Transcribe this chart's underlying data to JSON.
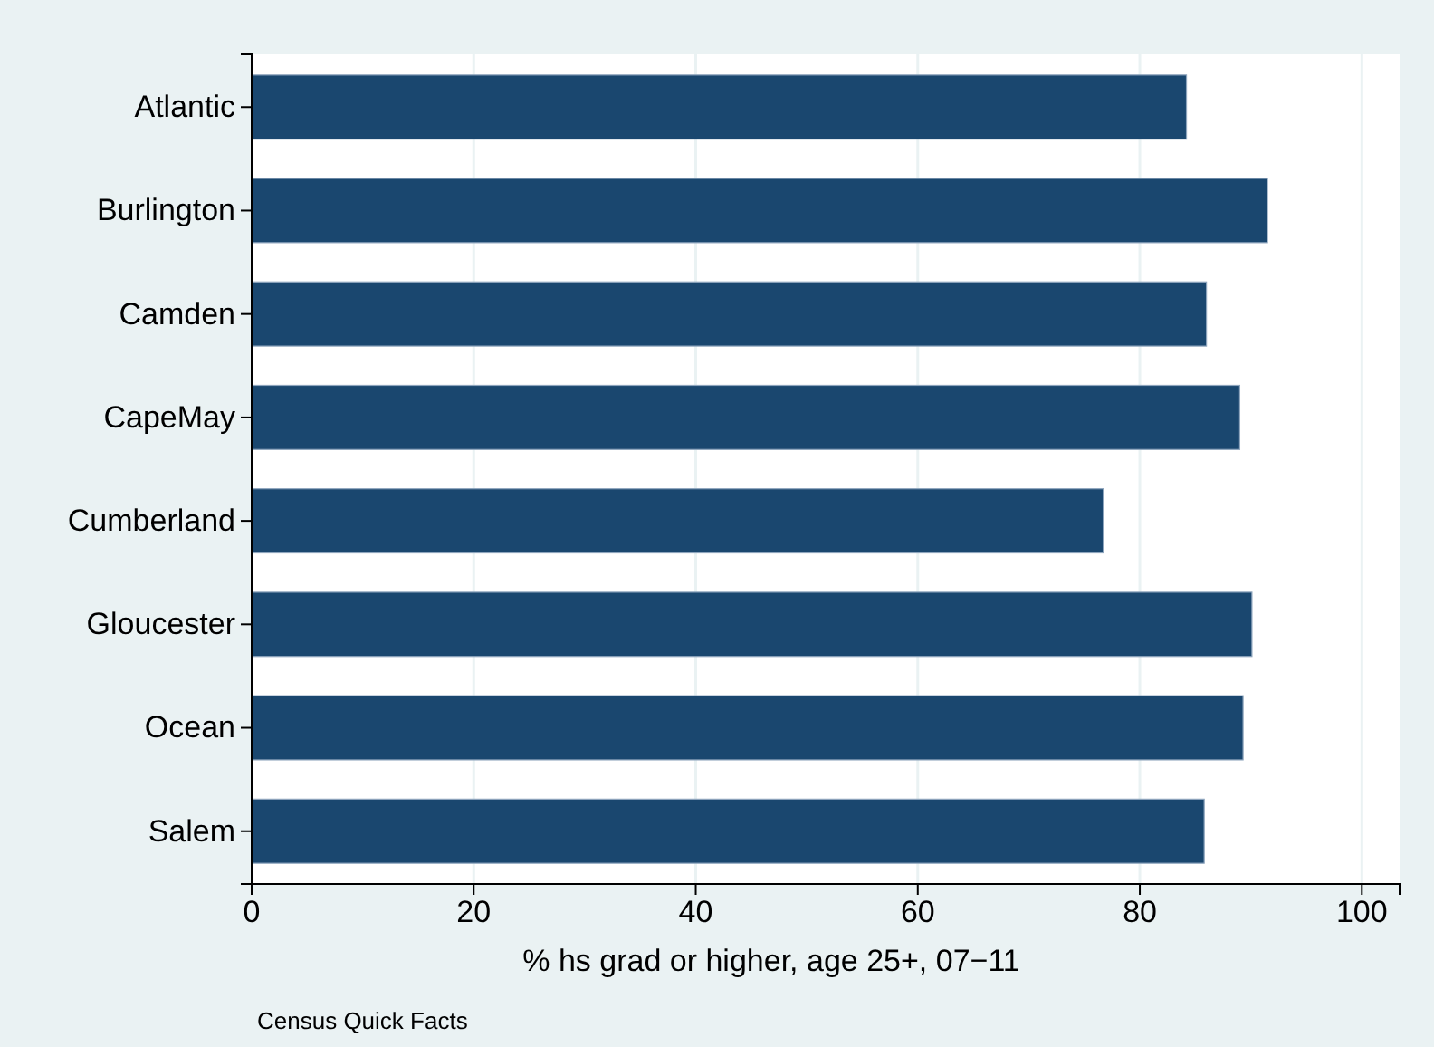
{
  "chart_data": {
    "type": "bar",
    "orientation": "horizontal",
    "categories": [
      "Atlantic",
      "Burlington",
      "Camden",
      "CapeMay",
      "Cumberland",
      "Gloucester",
      "Ocean",
      "Salem"
    ],
    "values": [
      84.2,
      91.5,
      86.0,
      89.0,
      76.7,
      90.1,
      89.3,
      85.8
    ],
    "color": "#1a476f",
    "xlim": [
      0,
      103.4
    ],
    "xticks": [
      0,
      20,
      40,
      60,
      80,
      100
    ],
    "grid": "x",
    "xlabel": "% hs grad or higher, age 25+, 07−11",
    "annotations": [
      "Census Quick Facts"
    ]
  }
}
